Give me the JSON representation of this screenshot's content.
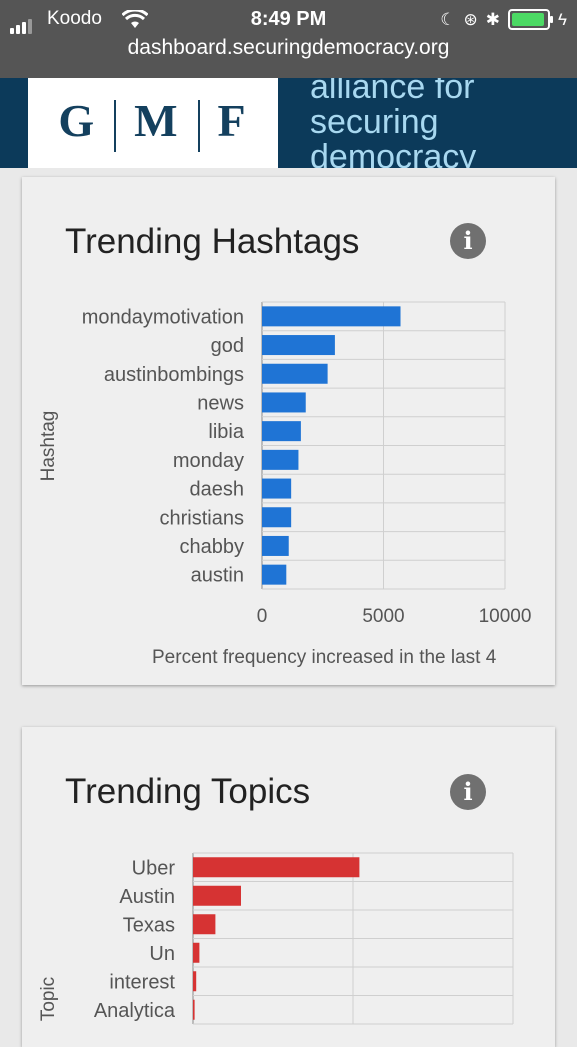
{
  "status_bar": {
    "carrier": "Koodo",
    "time": "8:49 PM"
  },
  "browser": {
    "url": "dashboard.securingdemocracy.org"
  },
  "header": {
    "logo_letters": [
      "G",
      "M",
      "F"
    ],
    "tagline_lines": [
      "alliance for",
      "securing",
      "democracy"
    ]
  },
  "cards": {
    "hashtags": {
      "title": "Trending Hashtags",
      "info_icon": "info-icon"
    },
    "topics": {
      "title": "Trending Topics",
      "info_icon": "info-icon"
    }
  },
  "chart_data": [
    {
      "type": "bar",
      "orientation": "horizontal",
      "categories": [
        "mondaymotivation",
        "god",
        "austinbombings",
        "news",
        "libia",
        "monday",
        "daesh",
        "christians",
        "chabby",
        "austin"
      ],
      "values": [
        5700,
        3000,
        2700,
        1800,
        1600,
        1500,
        1200,
        1200,
        1100,
        1000
      ],
      "xlim": [
        0,
        10000
      ],
      "xticks": [
        "0",
        "5000",
        "10000"
      ],
      "xlabel": "Percent frequency increased in the last 4",
      "ylabel": "Hashtag",
      "color": "#1f74d5",
      "grid": true
    },
    {
      "type": "bar",
      "orientation": "horizontal",
      "categories": [
        "Uber",
        "Austin",
        "Texas",
        "Un",
        "interest",
        "Analytica"
      ],
      "values": [
        5200,
        1500,
        700,
        200,
        100,
        50
      ],
      "xlim": [
        0,
        10000
      ],
      "xlabel": "",
      "ylabel": "Topic",
      "color": "#d63333",
      "grid": true
    }
  ]
}
